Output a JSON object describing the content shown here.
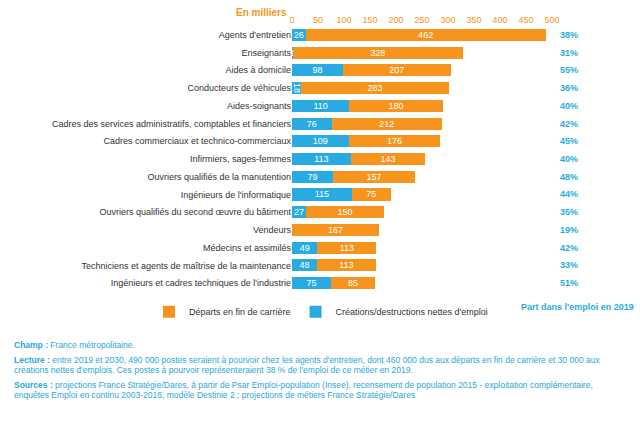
{
  "chart_data": {
    "type": "bar",
    "orientation": "horizontal",
    "stacked": true,
    "data_labels": true,
    "grid": false,
    "legend": "bottom",
    "x_label": "En milliers",
    "xlim": [
      0,
      500
    ],
    "xticks": [
      0,
      50,
      100,
      150,
      200,
      250,
      300,
      350,
      400,
      450,
      500
    ],
    "categories": [
      "Agents d'entretien",
      "Enseignants",
      "Aides à domicile",
      "Conducteurs de véhicules",
      "Aides-soignants",
      "Cadres des services administratifs, comptables et financiers",
      "Cadres commerciaux et technico-commerciaux",
      "Infirmiers, sages-femmes",
      "Ouvriers qualifiés de la manutention",
      "Ingénieurs de l'informatique",
      "Ouvriers qualifiés du second œuvre du bâtiment",
      "Vendeurs",
      "Médecins et assimilés",
      "Techniciens et agents de maîtrise de la maintenance",
      "Ingénieurs et cadres techniques de l'industrie"
    ],
    "series": [
      {
        "name": "Départs en fin de carrière",
        "color": "#f7941d",
        "values": [
          462,
          328,
          207,
          283,
          180,
          212,
          176,
          143,
          157,
          75,
          150,
          167,
          113,
          113,
          85
        ]
      },
      {
        "name": "Créations/destructions nettes d'emploi",
        "color": "#29abe2",
        "values": [
          26,
          1,
          98,
          18,
          110,
          76,
          109,
          113,
          79,
          115,
          27,
          null,
          49,
          48,
          75
        ]
      }
    ],
    "share": {
      "title": "Part dans l'emploi en 2019",
      "color": "#29abe2",
      "labels": [
        "38%",
        "31%",
        "55%",
        "36%",
        "40%",
        "42%",
        "45%",
        "40%",
        "48%",
        "44%",
        "35%",
        "19%",
        "42%",
        "33%",
        "51%"
      ]
    }
  },
  "notes": [
    {
      "label": "Champ :",
      "text": "France métropolitaine."
    },
    {
      "label": "Lecture :",
      "text": "entre 2019 et 2030, 490 000 postes seraient à pourvoir chez les agents d'entretien, dont 460 000 dus aux départs en fin de carrière et 30 000 aux créations nettes d'emplois. Ces postes à pourvoir représenteraient 38 % de l'emploi de ce métier en 2019."
    },
    {
      "label": "Sources :",
      "text": "projections France Stratégie/Dares, à partir de Psar Emploi-population (Insee), recensement de population 2015 - exploitation complémentaire, enquêtes Emploi en continu 2003-2016, modèle Destinie 2 ; projections de métiers France Stratégie/Dares"
    }
  ]
}
